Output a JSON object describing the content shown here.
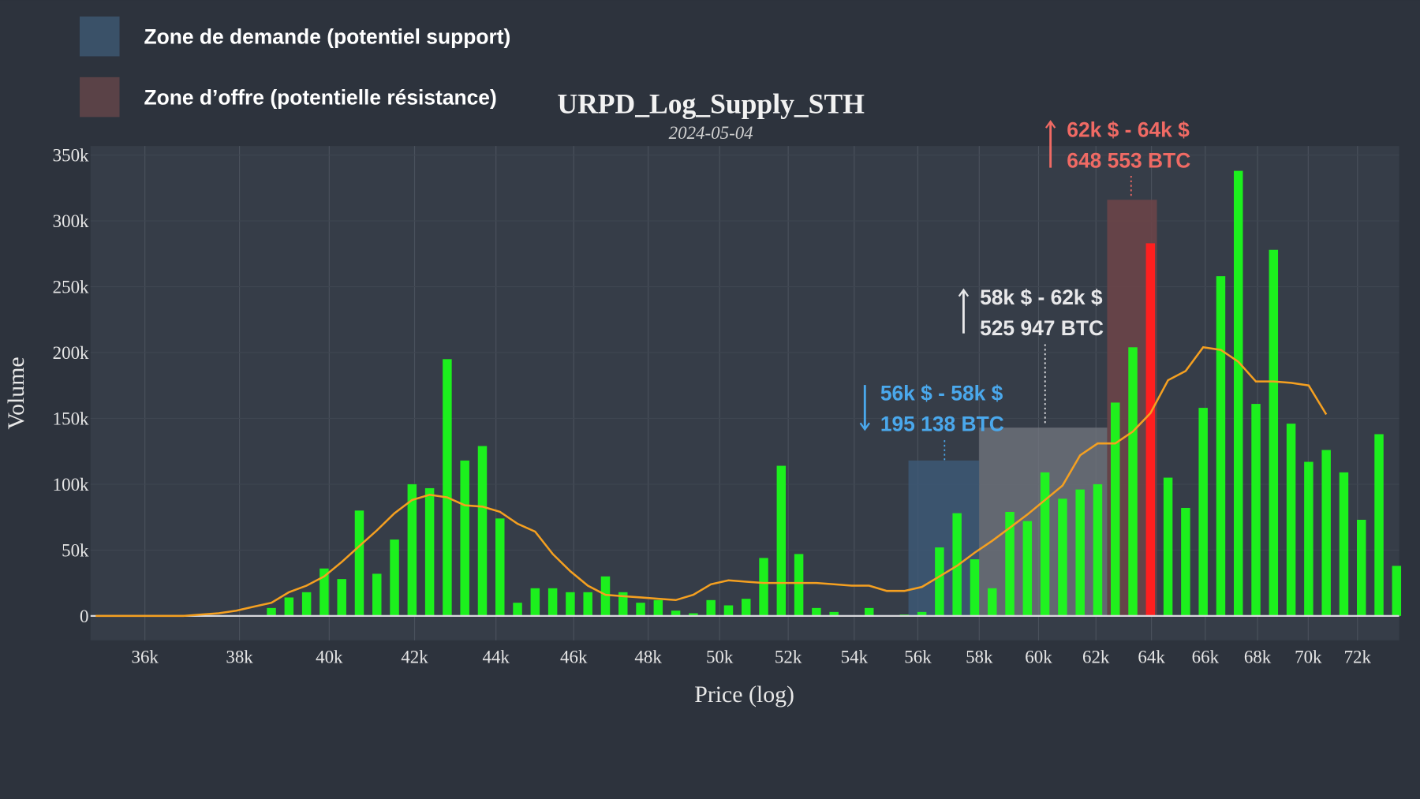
{
  "chart_data": {
    "type": "bar",
    "title": "URPD_Log_Supply_STH",
    "subtitle": "2024-05-04",
    "xlabel": "Price (log)",
    "ylabel": "Volume",
    "xscale": "log",
    "xlim": [
      34900,
      75500
    ],
    "ylim": [
      0,
      350000
    ],
    "grid": true,
    "x_ticks": [
      {
        "value": 36000,
        "label": "36k"
      },
      {
        "value": 38000,
        "label": "38k"
      },
      {
        "value": 40000,
        "label": "40k"
      },
      {
        "value": 42000,
        "label": "42k"
      },
      {
        "value": 44000,
        "label": "44k"
      },
      {
        "value": 46000,
        "label": "46k"
      },
      {
        "value": 48000,
        "label": "48k"
      },
      {
        "value": 50000,
        "label": "50k"
      },
      {
        "value": 52000,
        "label": "52k"
      },
      {
        "value": 54000,
        "label": "54k"
      },
      {
        "value": 56000,
        "label": "56k"
      },
      {
        "value": 58000,
        "label": "58k"
      },
      {
        "value": 60000,
        "label": "60k"
      },
      {
        "value": 62000,
        "label": "62k"
      },
      {
        "value": 64000,
        "label": "64k"
      },
      {
        "value": 66000,
        "label": "66k"
      },
      {
        "value": 68000,
        "label": "68k"
      },
      {
        "value": 70000,
        "label": "70k"
      },
      {
        "value": 72000,
        "label": "72k"
      }
    ],
    "y_ticks": [
      {
        "value": 0,
        "label": "0"
      },
      {
        "value": 50000,
        "label": "50k"
      },
      {
        "value": 100000,
        "label": "100k"
      },
      {
        "value": 150000,
        "label": "150k"
      },
      {
        "value": 200000,
        "label": "200k"
      },
      {
        "value": 250000,
        "label": "250k"
      },
      {
        "value": 300000,
        "label": "300k"
      },
      {
        "value": 350000,
        "label": "350k"
      }
    ],
    "bins": {
      "start_price": 38700,
      "ratio": 1.0101
    },
    "bars_k": [
      6,
      14,
      18,
      36,
      28,
      80,
      32,
      58,
      100,
      97,
      195,
      118,
      129,
      74,
      10,
      21,
      21,
      18,
      18,
      30,
      18,
      10,
      12,
      4,
      2,
      12,
      8,
      13,
      44,
      114,
      47,
      6,
      3,
      0,
      6,
      0,
      1,
      3,
      52,
      78,
      43,
      21,
      79,
      72,
      109,
      89,
      96,
      100,
      162,
      204,
      283,
      105,
      82,
      158,
      258,
      338,
      161,
      278,
      146,
      117,
      126,
      109,
      73,
      138,
      38
    ],
    "highlight_bar_index": 50,
    "smoothed_line": {
      "start_index": -10,
      "values_k": [
        0,
        0,
        0,
        0,
        0,
        0,
        1,
        2,
        4,
        7,
        10,
        18,
        23,
        30,
        41,
        53,
        65,
        78,
        88,
        92,
        90,
        84,
        83,
        79,
        70,
        64,
        47,
        34,
        23,
        16,
        15,
        14,
        13,
        12,
        16,
        24,
        27,
        26,
        25,
        25,
        25,
        25,
        24,
        23,
        23,
        19,
        19,
        22,
        30,
        38,
        48,
        57,
        67,
        77,
        88,
        99,
        122,
        131,
        131,
        140,
        154,
        179,
        186,
        204,
        202,
        193,
        178,
        178,
        177,
        175,
        153
      ]
    },
    "colors": {
      "bar": "#1aff1a",
      "highlight": "#ff1f1f",
      "line": "#f5a020",
      "demand": "#3d5a78",
      "neutral": "#6e737c",
      "supply": "#6a4448",
      "bg": "#2d333d",
      "plot_bg": "#363d48"
    },
    "zones": [
      {
        "name": "demand",
        "price_range": [
          55700,
          58000
        ],
        "top": 118000,
        "label_range": "56k $ - 58k $",
        "label_volume": "195 138 BTC",
        "color": "#4aa8ec",
        "arrow": "down"
      },
      {
        "name": "neutral",
        "price_range": [
          58000,
          62400
        ],
        "top": 143000,
        "label_range": "58k $ - 62k $",
        "label_volume": "525 947 BTC",
        "color": "#e8e8ea",
        "arrow": "up"
      },
      {
        "name": "supply",
        "price_range": [
          62400,
          64200
        ],
        "top": 316000,
        "label_range": "62k $ - 64k $",
        "label_volume": "648 553 BTC",
        "color": "#f06a64",
        "arrow": "up"
      }
    ],
    "legend": [
      {
        "label": "Zone de demande (potentiel support)",
        "color": "#3a5168"
      },
      {
        "label": "Zone d’offre (potentielle résistance)",
        "color": "#5a4247"
      }
    ]
  }
}
